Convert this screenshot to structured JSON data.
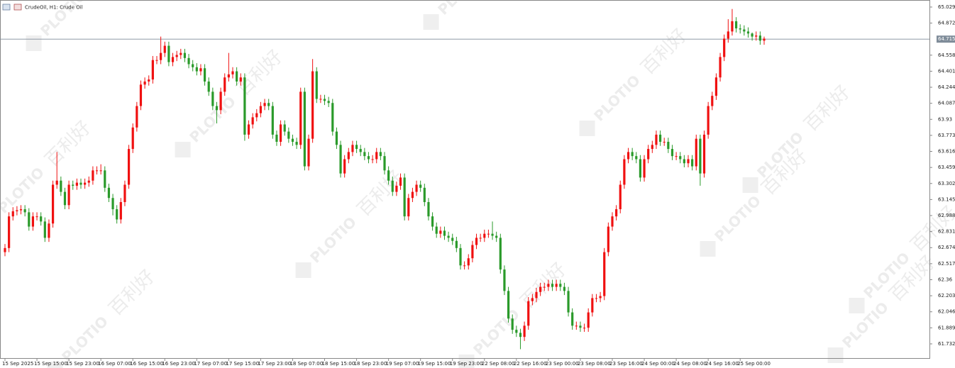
{
  "chart_data": {
    "type": "candlestick",
    "title": "CrudeOil, H1:  Crude Oil",
    "watermark": {
      "brand": "PLOTIO",
      "text": "百利好"
    },
    "up_color": "#f01010",
    "down_color": "#2a9a2a",
    "last_price": 64.715,
    "last_price_color": "#7f8c99",
    "grid": false,
    "ylim": [
      61.593,
      65.098
    ],
    "yticks": [
      65.029,
      64.872,
      64.558,
      64.401,
      64.244,
      64.087,
      63.93,
      63.773,
      63.616,
      63.459,
      63.302,
      63.145,
      62.988,
      62.831,
      62.674,
      62.517,
      62.36,
      62.203,
      62.046,
      61.889,
      61.732
    ],
    "categories": [
      "15 Sep 2025",
      null,
      null,
      null,
      null,
      null,
      null,
      null,
      "15 Sep 15:00",
      null,
      null,
      null,
      null,
      null,
      null,
      null,
      "15 Sep 23:00",
      null,
      null,
      null,
      null,
      null,
      null,
      null,
      "16 Sep 07:00",
      null,
      null,
      null,
      null,
      null,
      null,
      null,
      "16 Sep 15:00",
      null,
      null,
      null,
      null,
      null,
      null,
      null,
      "16 Sep 23:00",
      null,
      null,
      null,
      null,
      null,
      null,
      null,
      "17 Sep 07:00",
      null,
      null,
      null,
      null,
      null,
      null,
      null,
      "17 Sep 15:00",
      null,
      null,
      null,
      null,
      null,
      null,
      null,
      "17 Sep 23:00",
      null,
      null,
      null,
      null,
      null,
      null,
      null,
      "18 Sep 07:00",
      null,
      null,
      null,
      null,
      null,
      null,
      null,
      "18 Sep 15:00",
      null,
      null,
      null,
      null,
      null,
      null,
      null,
      "18 Sep 23:00",
      null,
      null,
      null,
      null,
      null,
      null,
      null,
      "19 Sep 07:00",
      null,
      null,
      null,
      null,
      null,
      null,
      null,
      "19 Sep 15:00",
      null,
      null,
      null,
      null,
      null,
      null,
      null,
      "19 Sep 23:00",
      null,
      null,
      null,
      null,
      null,
      null,
      null,
      "22 Sep 08:00",
      null,
      null,
      null,
      null,
      null,
      null,
      null,
      "22 Sep 16:00",
      null,
      null,
      null,
      null,
      null,
      null,
      null,
      "23 Sep 00:00",
      null,
      null,
      null,
      null,
      null,
      null,
      null,
      "23 Sep 08:00",
      null,
      null,
      null,
      null,
      null,
      null,
      null,
      "23 Sep 16:00",
      null,
      null,
      null,
      null,
      null,
      null,
      null,
      "24 Sep 00:00",
      null,
      null,
      null,
      null,
      null,
      null,
      null,
      "24 Sep 08:00",
      null,
      null,
      null,
      null,
      null,
      null,
      null,
      "24 Sep 16:00",
      null,
      null,
      null,
      null,
      null,
      null,
      null,
      "25 Sep 00:00",
      null,
      null,
      null,
      null,
      null,
      null
    ],
    "open": [
      62.63,
      62.67,
      62.98,
      63.03,
      63.04,
      63.05,
      63.02,
      62.88,
      62.98,
      62.98,
      62.93,
      62.77,
      62.91,
      63.29,
      63.33,
      63.22,
      63.09,
      63.29,
      63.28,
      63.31,
      63.29,
      63.31,
      63.33,
      63.43,
      63.43,
      63.43,
      63.26,
      63.16,
      63.05,
      62.95,
      63.12,
      63.29,
      63.64,
      63.85,
      64.06,
      64.27,
      64.3,
      64.32,
      64.51,
      64.51,
      64.58,
      64.65,
      64.49,
      64.54,
      64.56,
      64.58,
      64.53,
      64.47,
      64.44,
      64.4,
      64.43,
      64.3,
      64.2,
      64.06,
      64.02,
      64.2,
      64.34,
      64.37,
      64.4,
      64.3,
      64.34,
      63.78,
      63.88,
      63.95,
      63.99,
      64.06,
      64.09,
      64.06,
      63.78,
      63.71,
      63.88,
      63.81,
      63.74,
      63.71,
      63.68,
      64.2,
      63.47,
      63.74,
      64.4,
      64.13,
      64.13,
      64.11,
      64.09,
      63.81,
      63.68,
      63.4,
      63.54,
      63.61,
      63.68,
      63.64,
      63.61,
      63.57,
      63.54,
      63.54,
      63.61,
      63.57,
      63.43,
      63.33,
      63.22,
      63.28,
      63.36,
      62.98,
      63.16,
      63.22,
      63.29,
      63.26,
      63.12,
      62.98,
      62.88,
      62.81,
      62.84,
      62.79,
      62.77,
      62.74,
      62.67,
      62.5,
      62.5,
      62.57,
      62.7,
      62.77,
      62.77,
      62.81,
      62.81,
      62.79,
      62.77,
      62.46,
      62.25,
      61.98,
      61.87,
      61.84,
      61.8,
      61.91,
      62.15,
      62.18,
      62.24,
      62.29,
      62.29,
      62.32,
      62.29,
      62.32,
      62.29,
      62.25,
      62.04,
      61.91,
      61.91,
      61.89,
      61.89,
      62.04,
      62.18,
      62.18,
      62.2,
      62.63,
      62.88,
      62.98,
      63.05,
      63.29,
      63.54,
      63.61,
      63.57,
      63.54,
      63.36,
      63.54,
      63.64,
      63.68,
      63.78,
      63.71,
      63.71,
      63.64,
      63.57,
      63.57,
      63.54,
      63.5,
      63.54,
      63.47,
      63.74,
      63.4,
      63.78,
      64.06,
      64.16,
      64.34,
      64.54,
      64.72,
      64.79,
      64.89,
      64.82,
      64.81,
      64.79,
      64.77,
      64.74,
      64.75,
      64.7
    ],
    "high": [
      62.71,
      63.02,
      63.07,
      63.08,
      63.09,
      63.09,
      63.06,
      63.02,
      63.02,
      63.02,
      62.97,
      62.95,
      63.33,
      63.61,
      63.37,
      63.26,
      63.33,
      63.33,
      63.35,
      63.35,
      63.35,
      63.37,
      63.47,
      63.47,
      63.49,
      63.47,
      63.3,
      63.2,
      63.09,
      63.16,
      63.33,
      63.68,
      63.89,
      64.1,
      64.31,
      64.34,
      64.36,
      64.55,
      64.55,
      64.74,
      64.69,
      64.69,
      64.58,
      64.6,
      64.62,
      64.62,
      64.57,
      64.51,
      64.48,
      64.47,
      64.47,
      64.34,
      64.24,
      64.1,
      64.24,
      64.38,
      64.58,
      64.44,
      64.44,
      64.38,
      64.38,
      63.92,
      63.99,
      64.03,
      64.1,
      64.13,
      64.13,
      64.1,
      63.82,
      63.92,
      63.92,
      63.85,
      63.78,
      63.75,
      64.24,
      64.24,
      63.78,
      64.52,
      64.44,
      64.17,
      64.17,
      64.15,
      64.13,
      63.85,
      63.72,
      63.58,
      63.65,
      63.72,
      63.72,
      63.68,
      63.65,
      63.61,
      63.58,
      63.65,
      63.65,
      63.61,
      63.47,
      63.37,
      63.32,
      63.4,
      63.4,
      63.2,
      63.26,
      63.33,
      63.33,
      63.3,
      63.16,
      63.02,
      62.92,
      62.88,
      62.88,
      62.83,
      62.81,
      62.78,
      62.71,
      62.54,
      62.61,
      62.74,
      62.81,
      62.81,
      62.85,
      62.85,
      62.93,
      62.83,
      62.81,
      62.5,
      62.29,
      62.02,
      61.91,
      61.88,
      61.95,
      62.19,
      62.22,
      62.28,
      62.33,
      62.33,
      62.36,
      62.36,
      62.36,
      62.36,
      62.33,
      62.29,
      62.08,
      61.95,
      61.95,
      61.93,
      62.08,
      62.22,
      62.22,
      62.24,
      62.67,
      62.92,
      63.02,
      63.09,
      63.33,
      63.58,
      63.65,
      63.65,
      63.61,
      63.58,
      63.58,
      63.68,
      63.72,
      63.82,
      63.82,
      63.75,
      63.75,
      63.68,
      63.61,
      63.61,
      63.58,
      63.58,
      63.58,
      63.78,
      63.78,
      63.82,
      64.1,
      64.2,
      64.38,
      64.58,
      64.76,
      64.91,
      65.01,
      64.93,
      64.86,
      64.85,
      64.83,
      64.78,
      64.79,
      64.79,
      64.74
    ],
    "low": [
      62.59,
      62.63,
      62.94,
      62.99,
      63.0,
      62.98,
      62.84,
      62.84,
      62.94,
      62.89,
      62.73,
      62.73,
      62.87,
      63.25,
      63.18,
      63.05,
      63.05,
      63.24,
      63.24,
      63.25,
      63.25,
      63.27,
      63.29,
      63.39,
      63.39,
      63.22,
      63.12,
      62.99,
      62.91,
      62.91,
      63.08,
      63.25,
      63.6,
      63.81,
      64.02,
      64.23,
      64.26,
      64.28,
      64.47,
      64.47,
      64.54,
      64.45,
      64.45,
      64.5,
      64.52,
      64.49,
      64.43,
      64.4,
      64.36,
      64.36,
      64.26,
      64.16,
      64.02,
      63.89,
      63.98,
      64.16,
      64.3,
      64.33,
      64.26,
      64.26,
      63.72,
      63.74,
      63.84,
      63.91,
      63.95,
      64.02,
      64.02,
      63.74,
      63.67,
      63.67,
      63.77,
      63.7,
      63.67,
      63.64,
      63.64,
      63.43,
      63.43,
      63.7,
      64.09,
      64.09,
      64.07,
      64.05,
      63.77,
      63.64,
      63.36,
      63.36,
      63.5,
      63.57,
      63.6,
      63.57,
      63.53,
      63.5,
      63.5,
      63.5,
      63.53,
      63.39,
      63.29,
      63.18,
      63.18,
      63.24,
      62.94,
      62.94,
      63.12,
      63.18,
      63.22,
      63.08,
      62.94,
      62.84,
      62.77,
      62.77,
      62.75,
      62.73,
      62.7,
      62.63,
      62.46,
      62.46,
      62.46,
      62.53,
      62.66,
      62.73,
      62.73,
      62.77,
      62.75,
      62.73,
      62.42,
      62.21,
      61.94,
      61.83,
      61.8,
      61.68,
      61.76,
      61.87,
      62.11,
      62.14,
      62.2,
      62.25,
      62.25,
      62.25,
      62.25,
      62.25,
      62.21,
      62.0,
      61.87,
      61.87,
      61.85,
      61.85,
      61.85,
      62.0,
      62.14,
      62.14,
      62.16,
      62.59,
      62.84,
      62.94,
      63.01,
      63.25,
      63.5,
      63.53,
      63.5,
      63.32,
      63.32,
      63.5,
      63.6,
      63.64,
      63.67,
      63.67,
      63.6,
      63.53,
      63.53,
      63.5,
      63.46,
      63.46,
      63.43,
      63.43,
      63.28,
      63.36,
      63.74,
      64.02,
      64.12,
      64.3,
      64.5,
      64.68,
      64.75,
      64.78,
      64.77,
      64.75,
      64.73,
      64.7,
      64.7,
      64.66,
      64.66
    ],
    "close": [
      62.67,
      62.98,
      63.03,
      63.04,
      63.05,
      63.02,
      62.88,
      62.98,
      62.98,
      62.93,
      62.77,
      62.91,
      63.29,
      63.33,
      63.22,
      63.09,
      63.29,
      63.28,
      63.31,
      63.29,
      63.31,
      63.33,
      63.43,
      63.43,
      63.43,
      63.26,
      63.16,
      63.05,
      62.95,
      63.12,
      63.29,
      63.64,
      63.85,
      64.06,
      64.27,
      64.3,
      64.32,
      64.51,
      64.51,
      64.58,
      64.65,
      64.49,
      64.54,
      64.56,
      64.58,
      64.53,
      64.47,
      64.44,
      64.4,
      64.43,
      64.3,
      64.2,
      64.06,
      64.02,
      64.2,
      64.34,
      64.37,
      64.4,
      64.3,
      64.34,
      63.78,
      63.88,
      63.95,
      63.99,
      64.06,
      64.09,
      64.06,
      63.78,
      63.71,
      63.88,
      63.81,
      63.74,
      63.71,
      63.68,
      64.2,
      63.47,
      63.74,
      64.4,
      64.13,
      64.13,
      64.11,
      64.09,
      63.81,
      63.68,
      63.4,
      63.54,
      63.61,
      63.68,
      63.64,
      63.61,
      63.57,
      63.54,
      63.54,
      63.61,
      63.57,
      63.43,
      63.33,
      63.22,
      63.28,
      63.36,
      62.98,
      63.16,
      63.22,
      63.29,
      63.26,
      63.12,
      62.98,
      62.88,
      62.81,
      62.84,
      62.79,
      62.77,
      62.74,
      62.67,
      62.5,
      62.5,
      62.57,
      62.7,
      62.77,
      62.77,
      62.81,
      62.81,
      62.79,
      62.77,
      62.46,
      62.25,
      61.98,
      61.87,
      61.84,
      61.8,
      61.91,
      62.15,
      62.18,
      62.24,
      62.29,
      62.29,
      62.32,
      62.29,
      62.32,
      62.29,
      62.25,
      62.04,
      61.91,
      61.91,
      61.89,
      61.89,
      62.04,
      62.18,
      62.18,
      62.2,
      62.63,
      62.88,
      62.98,
      63.05,
      63.29,
      63.54,
      63.61,
      63.57,
      63.54,
      63.36,
      63.54,
      63.64,
      63.68,
      63.78,
      63.71,
      63.71,
      63.64,
      63.57,
      63.57,
      63.54,
      63.5,
      63.54,
      63.47,
      63.74,
      63.4,
      63.78,
      64.06,
      64.16,
      64.34,
      64.54,
      64.72,
      64.79,
      64.89,
      64.82,
      64.81,
      64.79,
      64.77,
      64.74,
      64.75,
      64.7,
      64.72
    ]
  }
}
